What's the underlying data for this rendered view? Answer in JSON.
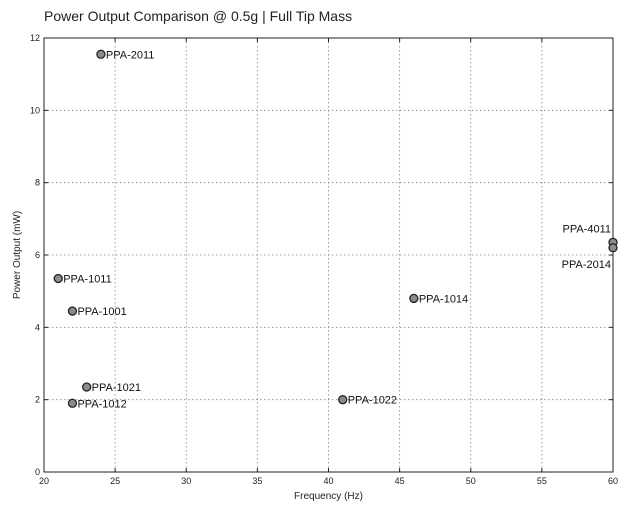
{
  "chart_data": {
    "type": "scatter",
    "title": "Power Output Comparison @ 0.5g | Full Tip Mass",
    "xlabel": "Frequency (Hz)",
    "ylabel": "Power Output (mW)",
    "xlim": [
      20,
      60
    ],
    "ylim": [
      0,
      12
    ],
    "xticks": [
      20,
      25,
      30,
      35,
      40,
      45,
      50,
      55,
      60
    ],
    "yticks": [
      0,
      2,
      4,
      6,
      8,
      10,
      12
    ],
    "grid": true,
    "marker_color": "#8c8c8c",
    "points": [
      {
        "label": "PPA-2011",
        "x": 24,
        "y": 11.55,
        "label_side": "right"
      },
      {
        "label": "PPA-1011",
        "x": 21,
        "y": 5.35,
        "label_side": "right"
      },
      {
        "label": "PPA-1001",
        "x": 22,
        "y": 4.45,
        "label_side": "right"
      },
      {
        "label": "PPA-1014",
        "x": 46,
        "y": 4.8,
        "label_side": "right"
      },
      {
        "label": "PPA-1021",
        "x": 23,
        "y": 2.35,
        "label_side": "right"
      },
      {
        "label": "PPA-1012",
        "x": 22,
        "y": 1.9,
        "label_side": "right"
      },
      {
        "label": "PPA-1022",
        "x": 41,
        "y": 2.0,
        "label_side": "right"
      },
      {
        "label": "PPA-4011",
        "x": 60,
        "y": 6.35,
        "label_side": "above-left"
      },
      {
        "label": "PPA-2014",
        "x": 60,
        "y": 6.2,
        "label_side": "below-left"
      }
    ]
  }
}
